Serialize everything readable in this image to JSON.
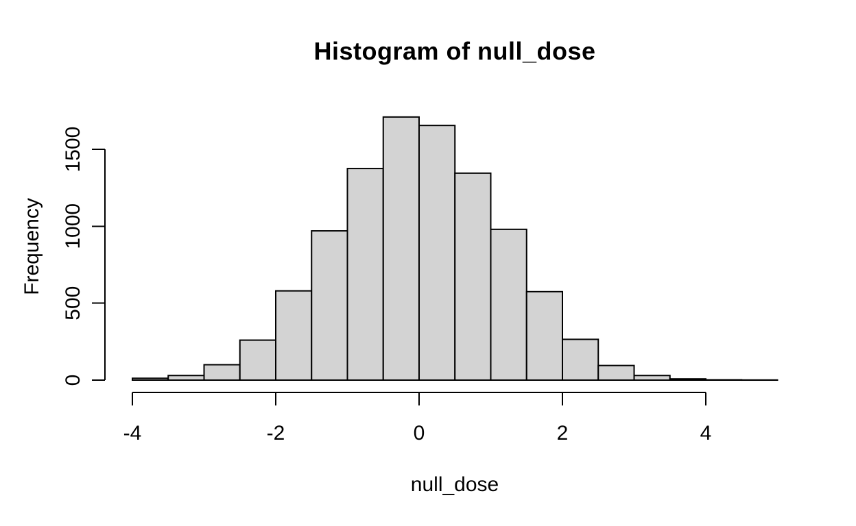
{
  "title": "Histogram of null_dose",
  "chart_data": {
    "type": "bar",
    "subtype": "histogram",
    "title": "Histogram of null_dose",
    "xlabel": "null_dose",
    "ylabel": "Frequency",
    "bin_edges": [
      -4.0,
      -3.5,
      -3.0,
      -2.5,
      -2.0,
      -1.5,
      -1.0,
      -0.5,
      0.0,
      0.5,
      1.0,
      1.5,
      2.0,
      2.5,
      3.0,
      3.5,
      4.0,
      4.5,
      5.0
    ],
    "counts": [
      12,
      30,
      100,
      260,
      580,
      970,
      1375,
      1710,
      1655,
      1345,
      980,
      575,
      265,
      95,
      30,
      8,
      2,
      1
    ],
    "x_ticks": [
      -4,
      -2,
      0,
      2,
      4
    ],
    "y_ticks": [
      0,
      500,
      1000,
      1500
    ],
    "xlim": [
      -4,
      5
    ],
    "ylim": [
      0,
      1500
    ],
    "grid": false,
    "legend": "none",
    "bar_fill": "#d3d3d3",
    "bar_stroke": "#000000",
    "axis_color": "#000000",
    "background": "#ffffff"
  }
}
